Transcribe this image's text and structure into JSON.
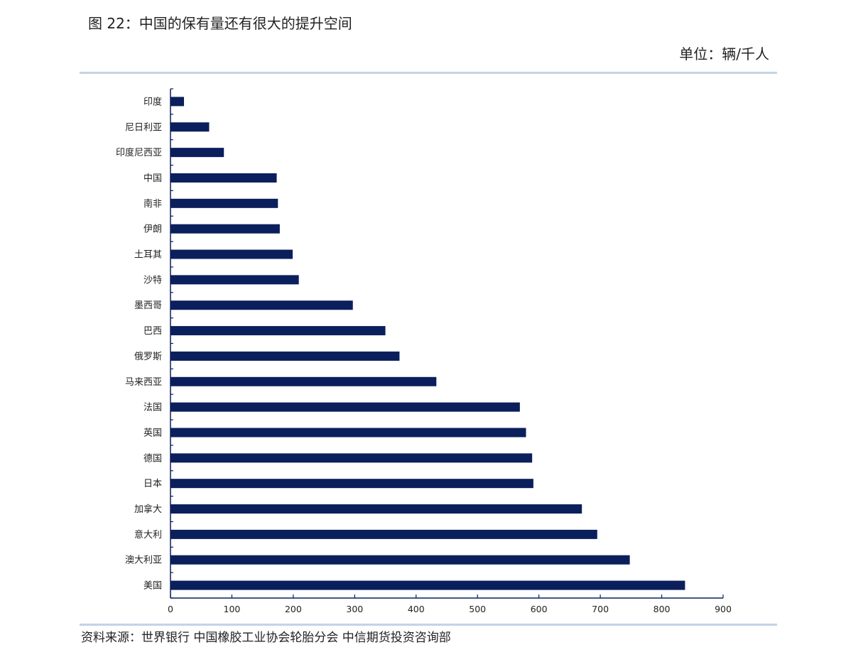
{
  "header": {
    "figure_title": "图 22：中国的保有量还有很大的提升空间",
    "unit_label": "单位：辆/千人"
  },
  "footer": {
    "source": "资料来源：世界银行 中国橡胶工业协会轮胎分会 中信期货投资咨询部"
  },
  "colors": {
    "bar": "#0b1f5c",
    "axis": "#0b1f5c",
    "rule": "#c5d3e6"
  },
  "chart_data": {
    "type": "bar",
    "orientation": "horizontal",
    "categories": [
      "印度",
      "尼日利亚",
      "印度尼西亚",
      "中国",
      "南非",
      "伊朗",
      "土耳其",
      "沙特",
      "墨西哥",
      "巴西",
      "俄罗斯",
      "马来西亚",
      "法国",
      "英国",
      "德国",
      "日本",
      "加拿大",
      "意大利",
      "澳大利亚",
      "美国"
    ],
    "values": [
      22,
      63,
      87,
      173,
      175,
      178,
      199,
      209,
      297,
      350,
      373,
      433,
      569,
      579,
      589,
      591,
      670,
      695,
      748,
      838
    ],
    "xlim": [
      0,
      900
    ],
    "xticks": [
      0,
      100,
      200,
      300,
      400,
      500,
      600,
      700,
      800,
      900
    ],
    "grid": false,
    "legend": "none"
  }
}
